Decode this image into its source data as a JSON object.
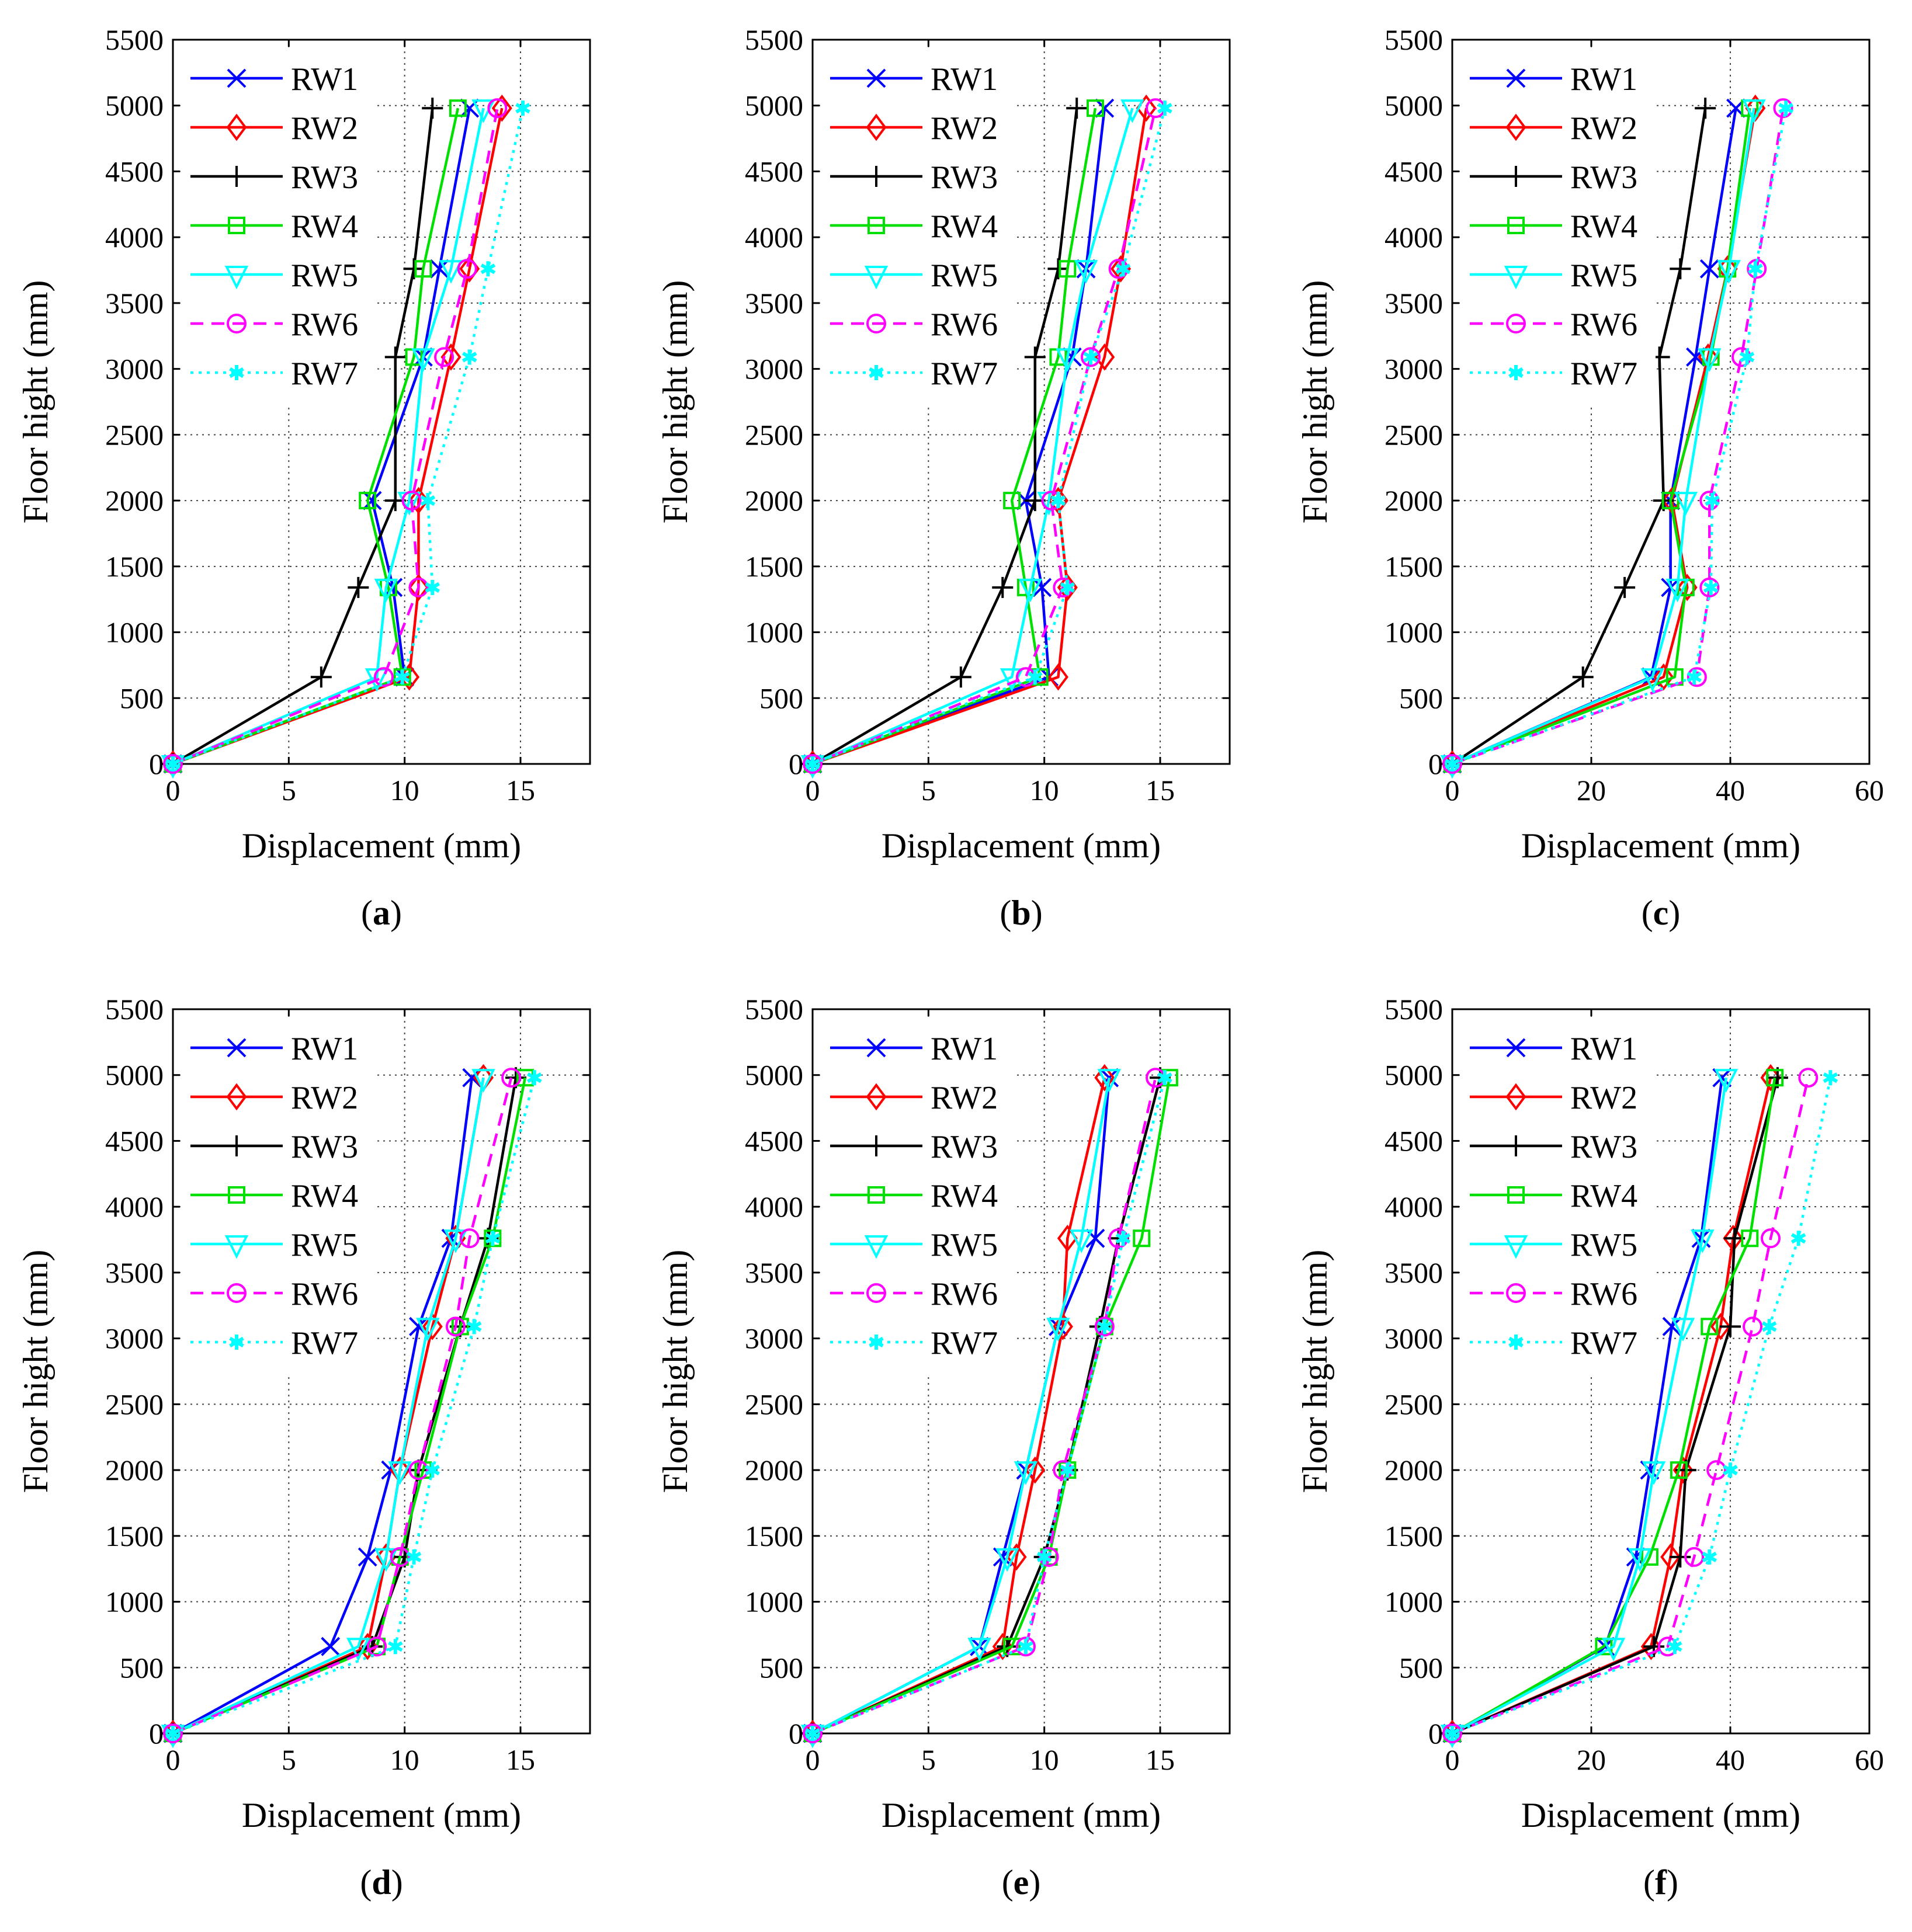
{
  "figure": {
    "series_style": [
      {
        "name": "RW1",
        "color": "#0000ff",
        "marker": "x",
        "dash": "solid"
      },
      {
        "name": "RW2",
        "color": "#ff0000",
        "marker": "diamond",
        "dash": "solid"
      },
      {
        "name": "RW3",
        "color": "#000000",
        "marker": "plus",
        "dash": "solid"
      },
      {
        "name": "RW4",
        "color": "#00e000",
        "marker": "square",
        "dash": "solid"
      },
      {
        "name": "RW5",
        "color": "#00ffff",
        "marker": "triangle-down",
        "dash": "solid"
      },
      {
        "name": "RW6",
        "color": "#ff00ff",
        "marker": "circle",
        "dash": "dashed"
      },
      {
        "name": "RW7",
        "color": "#00ffff",
        "marker": "asterisk",
        "dash": "dotted"
      }
    ]
  },
  "chart_data": [
    {
      "type": "line",
      "panel_label": "a",
      "xlabel": "Displacement (mm)",
      "ylabel": "Floor hight (mm)",
      "xlim": [
        0,
        18
      ],
      "xticks": [
        0,
        5,
        10,
        15
      ],
      "ylim": [
        0,
        5500
      ],
      "yticks": [
        0,
        500,
        1000,
        1500,
        2000,
        2500,
        3000,
        3500,
        4000,
        4500,
        5000,
        5500
      ],
      "grid": true,
      "legend": "top-left",
      "y": [
        0,
        660,
        1340,
        2000,
        3090,
        3760,
        4980
      ],
      "series": [
        {
          "name": "RW1",
          "values": [
            0,
            10.0,
            9.5,
            8.6,
            10.8,
            11.5,
            12.8
          ]
        },
        {
          "name": "RW2",
          "values": [
            0,
            10.2,
            10.6,
            10.6,
            12.0,
            12.8,
            14.2
          ]
        },
        {
          "name": "RW3",
          "values": [
            0,
            6.4,
            8.0,
            9.6,
            9.6,
            10.4,
            11.2
          ]
        },
        {
          "name": "RW4",
          "values": [
            0,
            9.9,
            9.3,
            8.4,
            10.4,
            10.8,
            12.3
          ]
        },
        {
          "name": "RW5",
          "values": [
            0,
            8.8,
            9.2,
            10.2,
            10.8,
            12.0,
            13.4
          ]
        },
        {
          "name": "RW6",
          "values": [
            0,
            9.1,
            10.6,
            10.3,
            11.7,
            12.7,
            14.0
          ]
        },
        {
          "name": "RW7",
          "values": [
            0,
            9.9,
            11.2,
            11.0,
            12.8,
            13.6,
            15.1
          ]
        }
      ]
    },
    {
      "type": "line",
      "panel_label": "b",
      "xlabel": "Displacement (mm)",
      "ylabel": "Floor hight (mm)",
      "xlim": [
        0,
        18
      ],
      "xticks": [
        0,
        5,
        10,
        15
      ],
      "ylim": [
        0,
        5500
      ],
      "yticks": [
        0,
        500,
        1000,
        1500,
        2000,
        2500,
        3000,
        3500,
        4000,
        4500,
        5000,
        5500
      ],
      "grid": true,
      "legend": "top-left",
      "y": [
        0,
        660,
        1340,
        2000,
        3090,
        3760,
        4980
      ],
      "series": [
        {
          "name": "RW1",
          "values": [
            0,
            10.2,
            9.9,
            9.2,
            11.2,
            11.8,
            12.6
          ]
        },
        {
          "name": "RW2",
          "values": [
            0,
            10.6,
            11.0,
            10.6,
            12.6,
            13.3,
            14.4
          ]
        },
        {
          "name": "RW3",
          "values": [
            0,
            6.4,
            8.2,
            9.6,
            9.6,
            10.6,
            11.4
          ]
        },
        {
          "name": "RW4",
          "values": [
            0,
            9.8,
            9.2,
            8.6,
            10.6,
            11.0,
            12.2
          ]
        },
        {
          "name": "RW5",
          "values": [
            0,
            8.6,
            9.4,
            10.2,
            11.0,
            11.8,
            13.8
          ]
        },
        {
          "name": "RW6",
          "values": [
            0,
            9.2,
            10.8,
            10.3,
            12.0,
            13.2,
            14.8
          ]
        },
        {
          "name": "RW7",
          "values": [
            0,
            9.6,
            11.0,
            10.6,
            12.0,
            13.4,
            15.2
          ]
        }
      ]
    },
    {
      "type": "line",
      "panel_label": "c",
      "xlabel": "Displacement (mm)",
      "ylabel": "Floor hight (mm)",
      "xlim": [
        0,
        60
      ],
      "xticks": [
        0,
        20,
        40,
        60
      ],
      "ylim": [
        0,
        5500
      ],
      "yticks": [
        0,
        500,
        1000,
        1500,
        2000,
        2500,
        3000,
        3500,
        4000,
        4500,
        5000,
        5500
      ],
      "grid": true,
      "legend": "top-left",
      "y": [
        0,
        660,
        1340,
        2000,
        3090,
        3760,
        4980
      ],
      "series": [
        {
          "name": "RW1",
          "values": [
            0,
            28.6,
            31.4,
            31.4,
            35.0,
            37.0,
            40.8
          ]
        },
        {
          "name": "RW2",
          "values": [
            0,
            30.4,
            33.8,
            31.6,
            36.8,
            39.6,
            43.6
          ]
        },
        {
          "name": "RW3",
          "values": [
            0,
            18.8,
            24.8,
            30.4,
            29.8,
            32.8,
            36.4
          ]
        },
        {
          "name": "RW4",
          "values": [
            0,
            32.0,
            33.6,
            31.4,
            37.2,
            39.6,
            42.8
          ]
        },
        {
          "name": "RW5",
          "values": [
            0,
            28.8,
            32.4,
            33.6,
            37.0,
            39.8,
            43.4
          ]
        },
        {
          "name": "RW6",
          "values": [
            0,
            35.2,
            37.0,
            37.0,
            41.6,
            43.8,
            47.6
          ]
        },
        {
          "name": "RW7",
          "values": [
            0,
            34.8,
            37.2,
            37.4,
            42.4,
            43.6,
            48.0
          ]
        }
      ]
    },
    {
      "type": "line",
      "panel_label": "d",
      "xlabel": "Displacement (mm)",
      "ylabel": "Floor hight (mm)",
      "xlim": [
        0,
        18
      ],
      "xticks": [
        0,
        5,
        10,
        15
      ],
      "ylim": [
        0,
        5500
      ],
      "yticks": [
        0,
        500,
        1000,
        1500,
        2000,
        2500,
        3000,
        3500,
        4000,
        4500,
        5000,
        5500
      ],
      "grid": true,
      "legend": "top-left",
      "y": [
        0,
        660,
        1340,
        2000,
        3090,
        3760,
        4980
      ],
      "series": [
        {
          "name": "RW1",
          "values": [
            0,
            6.8,
            8.4,
            9.4,
            10.6,
            12.0,
            12.9
          ]
        },
        {
          "name": "RW2",
          "values": [
            0,
            8.4,
            9.2,
            9.8,
            11.2,
            12.2,
            13.4
          ]
        },
        {
          "name": "RW3",
          "values": [
            0,
            8.6,
            10.0,
            10.6,
            12.4,
            13.6,
            14.8
          ]
        },
        {
          "name": "RW4",
          "values": [
            0,
            8.8,
            9.8,
            10.8,
            12.4,
            13.8,
            15.2
          ]
        },
        {
          "name": "RW5",
          "values": [
            0,
            8.0,
            9.2,
            9.8,
            11.0,
            12.2,
            13.4
          ]
        },
        {
          "name": "RW6",
          "values": [
            0,
            8.8,
            9.8,
            10.6,
            12.2,
            12.8,
            14.6
          ]
        },
        {
          "name": "RW7",
          "values": [
            0,
            9.6,
            10.4,
            11.2,
            13.0,
            13.8,
            15.6
          ]
        }
      ]
    },
    {
      "type": "line",
      "panel_label": "e",
      "xlabel": "Displacement (mm)",
      "ylabel": "Floor hight (mm)",
      "xlim": [
        0,
        18
      ],
      "xticks": [
        0,
        5,
        10,
        15
      ],
      "ylim": [
        0,
        5500
      ],
      "yticks": [
        0,
        500,
        1000,
        1500,
        2000,
        2500,
        3000,
        3500,
        4000,
        4500,
        5000,
        5500
      ],
      "grid": true,
      "legend": "top-left",
      "y": [
        0,
        660,
        1340,
        2000,
        3090,
        3760,
        4980
      ],
      "series": [
        {
          "name": "RW1",
          "values": [
            0,
            7.2,
            8.2,
            9.2,
            10.6,
            12.2,
            12.8
          ]
        },
        {
          "name": "RW2",
          "values": [
            0,
            8.2,
            8.8,
            9.6,
            10.8,
            11.0,
            12.6
          ]
        },
        {
          "name": "RW3",
          "values": [
            0,
            8.4,
            10.0,
            11.0,
            12.4,
            13.2,
            15.0
          ]
        },
        {
          "name": "RW4",
          "values": [
            0,
            8.6,
            10.2,
            11.0,
            12.6,
            14.2,
            15.4
          ]
        },
        {
          "name": "RW5",
          "values": [
            0,
            7.2,
            8.4,
            9.2,
            10.6,
            11.6,
            12.8
          ]
        },
        {
          "name": "RW6",
          "values": [
            0,
            9.2,
            10.2,
            10.8,
            12.6,
            13.2,
            14.8
          ]
        },
        {
          "name": "RW7",
          "values": [
            0,
            9.2,
            10.0,
            11.0,
            12.6,
            13.4,
            15.2
          ]
        }
      ]
    },
    {
      "type": "line",
      "panel_label": "f",
      "xlabel": "Displacement (mm)",
      "ylabel": "Floor hight (mm)",
      "xlim": [
        0,
        60
      ],
      "xticks": [
        0,
        20,
        40,
        60
      ],
      "ylim": [
        0,
        5500
      ],
      "yticks": [
        0,
        500,
        1000,
        1500,
        2000,
        2500,
        3000,
        3500,
        4000,
        4500,
        5000,
        5500
      ],
      "grid": true,
      "legend": "top-left",
      "y": [
        0,
        660,
        1340,
        2000,
        3090,
        3760,
        4980
      ],
      "series": [
        {
          "name": "RW1",
          "values": [
            0,
            22.0,
            26.4,
            28.4,
            31.6,
            35.8,
            38.8
          ]
        },
        {
          "name": "RW2",
          "values": [
            0,
            28.6,
            31.4,
            33.2,
            38.6,
            40.4,
            45.8
          ]
        },
        {
          "name": "RW3",
          "values": [
            0,
            29.0,
            32.8,
            33.6,
            40.0,
            40.6,
            46.8
          ]
        },
        {
          "name": "RW4",
          "values": [
            0,
            21.8,
            28.4,
            32.6,
            37.0,
            42.8,
            46.4
          ]
        },
        {
          "name": "RW5",
          "values": [
            0,
            23.2,
            27.0,
            29.0,
            33.2,
            36.0,
            39.4
          ]
        },
        {
          "name": "RW6",
          "values": [
            0,
            31.0,
            34.8,
            38.0,
            43.2,
            45.8,
            51.2
          ]
        },
        {
          "name": "RW7",
          "values": [
            0,
            32.0,
            37.0,
            40.0,
            45.6,
            49.8,
            54.4
          ]
        }
      ]
    }
  ]
}
